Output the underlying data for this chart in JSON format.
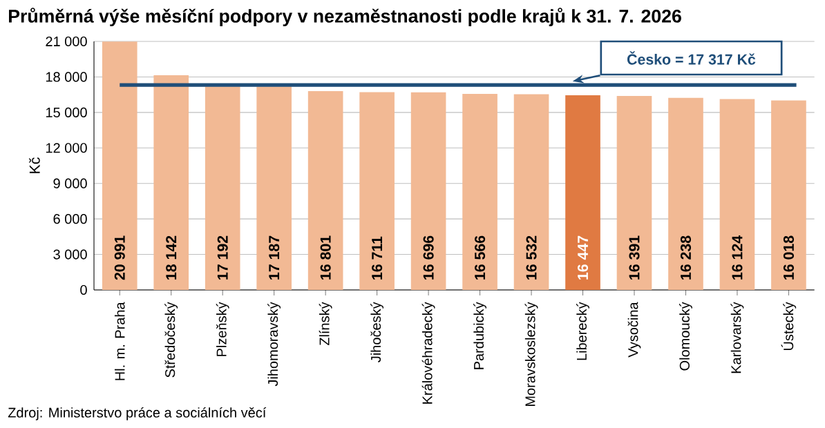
{
  "chart_data": {
    "type": "bar",
    "title": "Průměrná výše měsíční podpory v nezaměstnanosti podle krajů k 31. 7. 2026",
    "ylabel": "Kč",
    "categories": [
      "Hl. m. Praha",
      "Středočeský",
      "Plzeňský",
      "Jihomoravský",
      "Zlínský",
      "Jihočeský",
      "Královéhradecký",
      "Pardubický",
      "Moravskoslezský",
      "Liberecký",
      "Vysočina",
      "Olomoucký",
      "Karlovarský",
      "Ústecký"
    ],
    "values": [
      20991,
      18142,
      17192,
      17187,
      16801,
      16711,
      16696,
      16566,
      16532,
      16447,
      16391,
      16238,
      16124,
      16018
    ],
    "colors": [
      "#f2b994",
      "#f2b994",
      "#f2b994",
      "#f2b994",
      "#f2b994",
      "#f2b994",
      "#f2b994",
      "#f2b994",
      "#f2b994",
      "#e07a42",
      "#f2b994",
      "#f2b994",
      "#f2b994",
      "#f2b994"
    ],
    "value_labels": [
      "20 991",
      "18 142",
      "17 192",
      "17 187",
      "16 801",
      "16 711",
      "16 696",
      "16 566",
      "16 532",
      "16 447",
      "16 391",
      "16 238",
      "16 124",
      "16 018"
    ],
    "ylim": [
      0,
      21000
    ],
    "yticks": [
      {
        "value": 0,
        "label": "0"
      },
      {
        "value": 3000,
        "label": "3 000"
      },
      {
        "value": 6000,
        "label": "6 000"
      },
      {
        "value": 9000,
        "label": "9 000"
      },
      {
        "value": 12000,
        "label": "12 000"
      },
      {
        "value": 15000,
        "label": "15 000"
      },
      {
        "value": 18000,
        "label": "18 000"
      },
      {
        "value": 21000,
        "label": "21 000"
      }
    ],
    "grid": "y",
    "ref_lines": [
      {
        "axis": "y",
        "value": 17317,
        "label": "Česko = 17 317 Kč",
        "color": "#1f4e79"
      }
    ],
    "annotations": [
      "Zdroj: Ministerstvo práce a sociálních věcí"
    ]
  }
}
